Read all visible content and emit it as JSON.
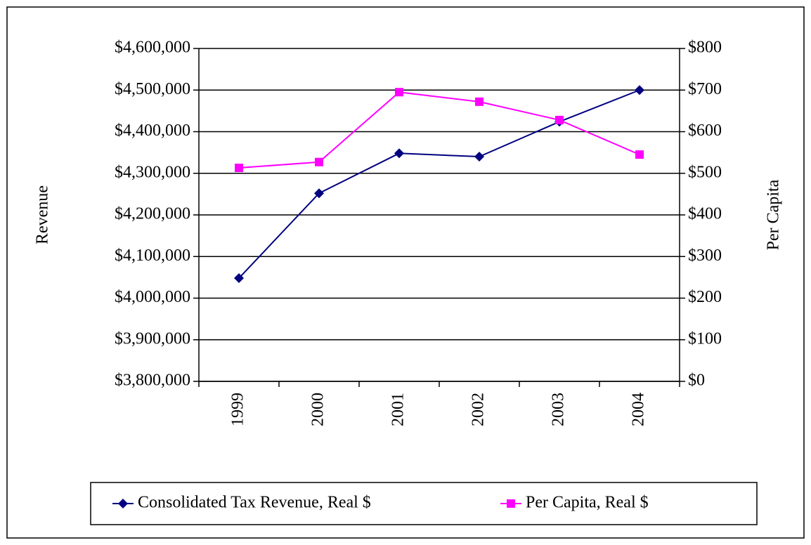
{
  "chart_data": {
    "type": "line",
    "categories": [
      "1999",
      "2000",
      "2001",
      "2002",
      "2003",
      "2004"
    ],
    "ylabel": "Revenue",
    "y2label": "Per Capita",
    "series": [
      {
        "name": "Consolidated Tax Revenue, Real $",
        "color": "#000080",
        "marker": "diamond",
        "values": [
          4048000,
          4252000,
          4348000,
          4340000,
          4424000,
          4500000
        ]
      },
      {
        "name": "Per Capita, Real $",
        "color": "#ff00ff",
        "marker": "square",
        "axis": "y2",
        "values": [
          513,
          527,
          695,
          672,
          628,
          545
        ]
      }
    ],
    "ylim": [
      3800000,
      4600000
    ],
    "yticks": [
      {
        "value": 3800000,
        "label": "$3,800,000"
      },
      {
        "value": 3900000,
        "label": "$3,900,000"
      },
      {
        "value": 4000000,
        "label": "$4,000,000"
      },
      {
        "value": 4100000,
        "label": "$4,100,000"
      },
      {
        "value": 4200000,
        "label": "$4,200,000"
      },
      {
        "value": 4300000,
        "label": "$4,300,000"
      },
      {
        "value": 4400000,
        "label": "$4,400,000"
      },
      {
        "value": 4500000,
        "label": "$4,500,000"
      },
      {
        "value": 4600000,
        "label": "$4,600,000"
      }
    ],
    "y2lim": [
      0,
      800
    ],
    "y2ticks": [
      {
        "value": 0,
        "label": "$0"
      },
      {
        "value": 100,
        "label": "$100"
      },
      {
        "value": 200,
        "label": "$200"
      },
      {
        "value": 300,
        "label": "$300"
      },
      {
        "value": 400,
        "label": "$400"
      },
      {
        "value": 500,
        "label": "$500"
      },
      {
        "value": 600,
        "label": "$600"
      },
      {
        "value": 700,
        "label": "$700"
      },
      {
        "value": 800,
        "label": "$800"
      }
    ],
    "grid": true,
    "legend": "bottom"
  }
}
